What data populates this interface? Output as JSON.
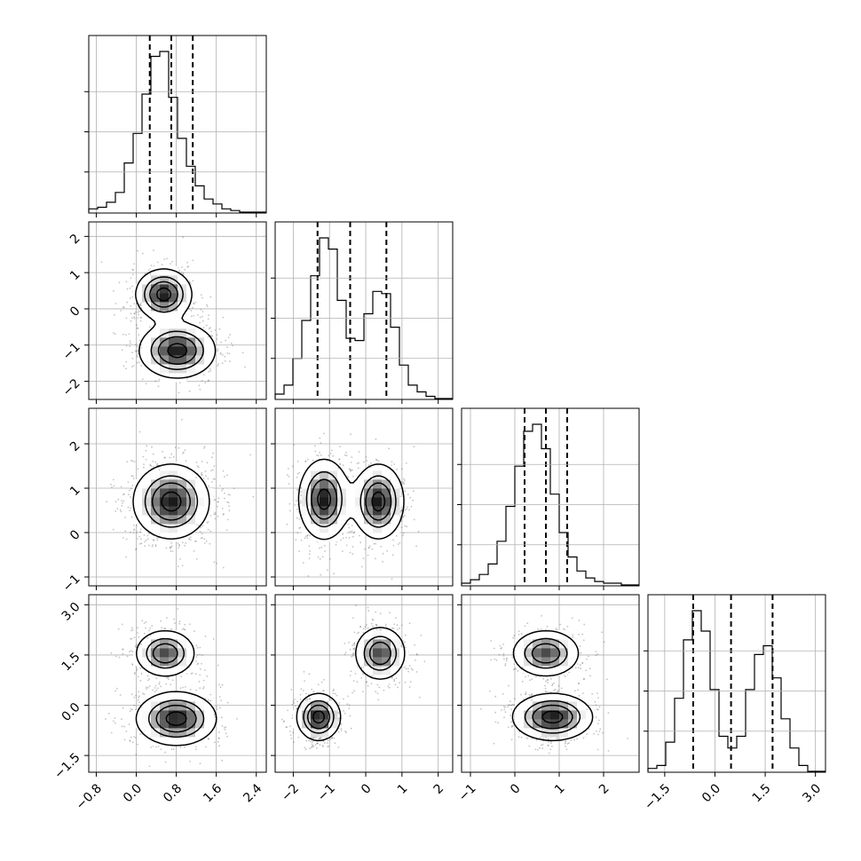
{
  "chart_data": {
    "type": "corner",
    "variables": [
      {
        "range": [
          -0.95,
          2.6
        ],
        "ticks": [
          -0.8,
          0.0,
          0.8,
          1.6,
          2.4
        ],
        "tick_labels": [
          "−0.8",
          "0.0",
          "0.8",
          "1.6",
          "2.4"
        ],
        "quantiles": [
          0.27,
          0.7,
          1.13
        ]
      },
      {
        "range": [
          -2.5,
          2.4
        ],
        "ticks": [
          -2,
          -1,
          0,
          1,
          2
        ],
        "tick_labels": [
          "−2",
          "−1",
          "0",
          "1",
          "2"
        ],
        "quantiles": [
          -1.33,
          -0.43,
          0.57
        ]
      },
      {
        "range": [
          -1.2,
          2.8
        ],
        "ticks": [
          -1,
          0,
          1,
          2
        ],
        "tick_labels": [
          "−1",
          "0",
          "1",
          "2"
        ],
        "quantiles": [
          0.22,
          0.7,
          1.18
        ]
      },
      {
        "range": [
          -2.0,
          3.3
        ],
        "ticks": [
          -1.5,
          0.0,
          1.5,
          3.0
        ],
        "tick_labels": [
          "−1.5",
          "0.0",
          "1.5",
          "3.0"
        ],
        "quantiles": [
          -0.65,
          0.48,
          1.72
        ]
      }
    ],
    "histograms": [
      {
        "bin_edges_range": [
          -0.95,
          2.6
        ],
        "counts": [
          2,
          3,
          6,
          12,
          30,
          48,
          72,
          95,
          98,
          70,
          45,
          28,
          16,
          8,
          5,
          2,
          1,
          0,
          0,
          0
        ]
      },
      {
        "bin_edges_range": [
          -2.5,
          2.4
        ],
        "counts": [
          2,
          6,
          18,
          35,
          55,
          72,
          67,
          44,
          27,
          26,
          38,
          48,
          47,
          32,
          15,
          6,
          3,
          1,
          0,
          0
        ]
      },
      {
        "bin_edges_range": [
          -1.2,
          2.8
        ],
        "counts": [
          1,
          3,
          6,
          12,
          25,
          45,
          68,
          88,
          92,
          78,
          52,
          30,
          16,
          8,
          4,
          2,
          1,
          1,
          0,
          0
        ]
      },
      {
        "bin_edges_range": [
          -2.0,
          3.3
        ],
        "counts": [
          1,
          2,
          10,
          25,
          45,
          55,
          48,
          28,
          12,
          8,
          12,
          28,
          40,
          43,
          32,
          18,
          8,
          2,
          0,
          0
        ]
      }
    ],
    "panels": [
      {
        "row": 1,
        "col": 0,
        "modes": [
          {
            "x": 0.55,
            "y": 0.4,
            "sx": 0.28,
            "sy": 0.35,
            "w": 1.0
          },
          {
            "x": 0.82,
            "y": -1.15,
            "sx": 0.38,
            "sy": 0.38,
            "w": 1.0
          }
        ]
      },
      {
        "row": 2,
        "col": 0,
        "modes": [
          {
            "x": 0.7,
            "y": 0.7,
            "sx": 0.38,
            "sy": 0.42,
            "w": 1.0
          }
        ]
      },
      {
        "row": 2,
        "col": 1,
        "modes": [
          {
            "x": -1.15,
            "y": 0.75,
            "sx": 0.35,
            "sy": 0.45,
            "w": 1.0
          },
          {
            "x": 0.35,
            "y": 0.7,
            "sx": 0.35,
            "sy": 0.42,
            "w": 1.0
          }
        ]
      },
      {
        "row": 3,
        "col": 0,
        "modes": [
          {
            "x": 0.58,
            "y": 1.55,
            "sx": 0.3,
            "sy": 0.35,
            "w": 0.85
          },
          {
            "x": 0.8,
            "y": -0.4,
            "sx": 0.4,
            "sy": 0.4,
            "w": 1.0
          }
        ]
      },
      {
        "row": 3,
        "col": 1,
        "modes": [
          {
            "x": -1.3,
            "y": -0.35,
            "sx": 0.3,
            "sy": 0.35,
            "w": 1.0
          },
          {
            "x": 0.4,
            "y": 1.55,
            "sx": 0.35,
            "sy": 0.4,
            "w": 0.85
          }
        ]
      },
      {
        "row": 3,
        "col": 2,
        "modes": [
          {
            "x": 0.7,
            "y": 1.55,
            "sx": 0.38,
            "sy": 0.35,
            "w": 0.85
          },
          {
            "x": 0.85,
            "y": -0.35,
            "sx": 0.45,
            "sy": 0.35,
            "w": 1.0
          }
        ]
      }
    ],
    "title": "",
    "xlabel": "",
    "ylabel": "",
    "grid": true,
    "legend": "none"
  }
}
